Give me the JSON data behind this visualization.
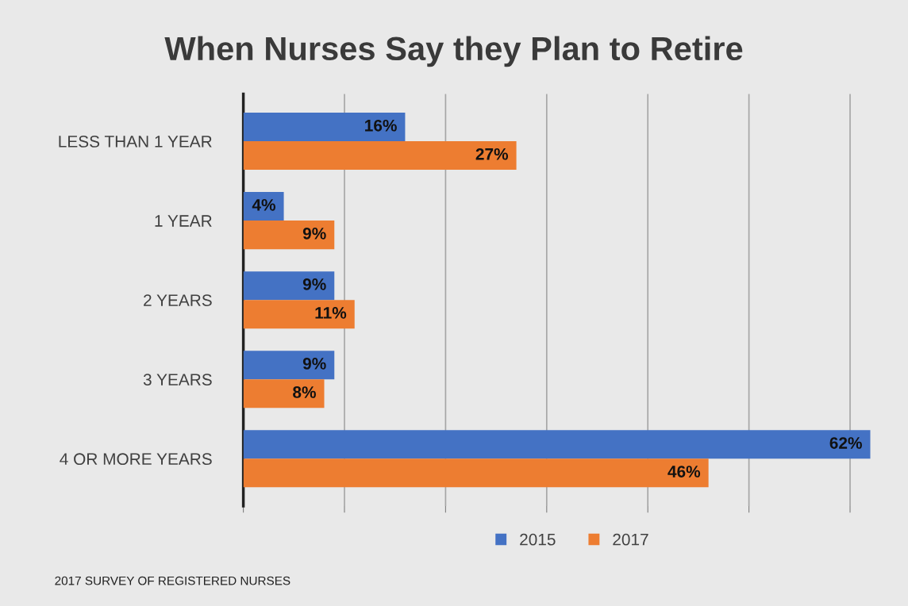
{
  "chart_data": {
    "type": "bar",
    "orientation": "horizontal",
    "title": "When Nurses Say they Plan to Retire",
    "categories": [
      "LESS THAN 1 YEAR",
      "1 YEAR",
      "2 YEARS",
      "3 YEARS",
      "4 OR MORE YEARS"
    ],
    "series": [
      {
        "name": "2015",
        "color": "#4472c4",
        "values": [
          16,
          4,
          9,
          9,
          62
        ],
        "value_labels": [
          "16%",
          "4%",
          "9%",
          "9%",
          "62%"
        ]
      },
      {
        "name": "2017",
        "color": "#ed7d31",
        "values": [
          27,
          9,
          11,
          8,
          46
        ],
        "value_labels": [
          "27%",
          "9%",
          "11%",
          "8%",
          "46%"
        ]
      }
    ],
    "tick_labels": "y",
    "grid": "x",
    "legend": "bottom",
    "annotations": [
      "2017 SURVEY OF REGISTERED NURSES"
    ]
  }
}
